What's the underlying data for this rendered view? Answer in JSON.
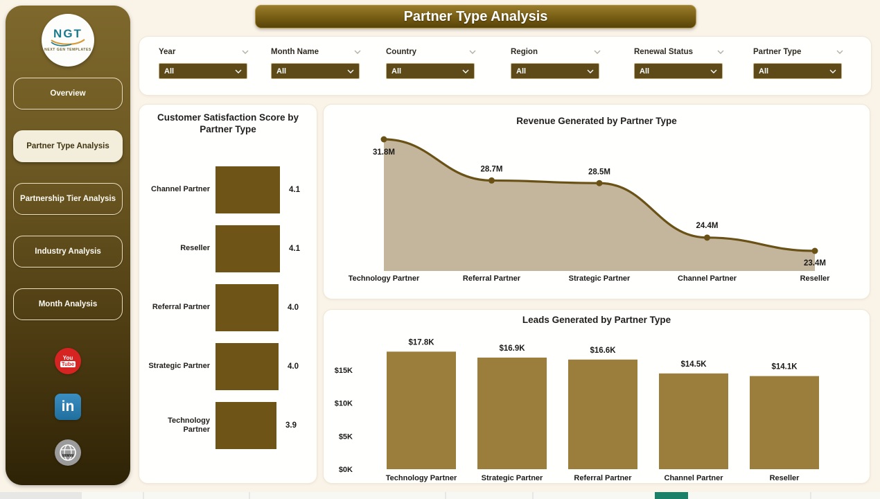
{
  "title": "Partner Type Analysis",
  "logo": {
    "text": "NGT",
    "subtext": "NEXT GEN TEMPLATES"
  },
  "sidebar": {
    "items": [
      {
        "label": "Overview",
        "active": false
      },
      {
        "label": "Partner Type Analysis",
        "active": true
      },
      {
        "label": "Partnership Tier Analysis",
        "active": false
      },
      {
        "label": "Industry Analysis",
        "active": false
      },
      {
        "label": "Month Analysis",
        "active": false
      }
    ],
    "social": [
      {
        "id": "youtube",
        "text": [
          "You",
          "Tube"
        ]
      },
      {
        "id": "linkedin",
        "text": [
          "in"
        ]
      },
      {
        "id": "website",
        "text": [
          "www"
        ]
      }
    ]
  },
  "filters": [
    {
      "label": "Year",
      "value": "All"
    },
    {
      "label": "Month Name",
      "value": "All"
    },
    {
      "label": "Country",
      "value": "All"
    },
    {
      "label": "Region",
      "value": "All"
    },
    {
      "label": "Renewal Status",
      "value": "All"
    },
    {
      "label": "Partner Type",
      "value": "All"
    }
  ],
  "chart_data": [
    {
      "type": "bar",
      "orientation": "horizontal",
      "title": "Customer Satisfaction Score by Partner Type",
      "categories": [
        "Channel Partner",
        "Reseller",
        "Referral Partner",
        "Strategic Partner",
        "Technology Partner"
      ],
      "values": [
        4.1,
        4.1,
        4.0,
        4.0,
        3.9
      ],
      "value_labels": [
        "4.1",
        "4.1",
        "4.0",
        "4.0",
        "3.9"
      ],
      "xlim": [
        0,
        4.1
      ],
      "grid": false,
      "legend": false
    },
    {
      "type": "area",
      "title": "Revenue Generated by Partner Type",
      "categories": [
        "Technology Partner",
        "Referral Partner",
        "Strategic Partner",
        "Channel Partner",
        "Reseller"
      ],
      "values": [
        31.8,
        28.7,
        28.5,
        24.4,
        23.4
      ],
      "value_labels": [
        "31.8M",
        "28.7M",
        "28.5M",
        "24.4M",
        "23.4M"
      ],
      "unit": "M",
      "grid": false,
      "legend": false
    },
    {
      "type": "bar",
      "title": "Leads Generated by Partner Type",
      "categories": [
        "Technology Partner",
        "Strategic Partner",
        "Referral Partner",
        "Channel Partner",
        "Reseller"
      ],
      "values": [
        17.8,
        16.9,
        16.6,
        14.5,
        14.1
      ],
      "value_labels": [
        "$17.8K",
        "$16.9K",
        "$16.6K",
        "$14.5K",
        "$14.1K"
      ],
      "yticks": [
        "$0K",
        "$5K",
        "$10K",
        "$15K"
      ],
      "ytick_values": [
        0,
        5,
        10,
        15
      ],
      "ylim": [
        0,
        19
      ],
      "grid": false,
      "legend": false
    }
  ],
  "colors": {
    "sat_bar": "#6e5517",
    "rev_line": "#6a5217",
    "rev_area": "#c4b59d",
    "rev_dot": "#6a5217",
    "leads_bar": "#9b7d3c",
    "page_thumb_teal": "#1a8068"
  }
}
